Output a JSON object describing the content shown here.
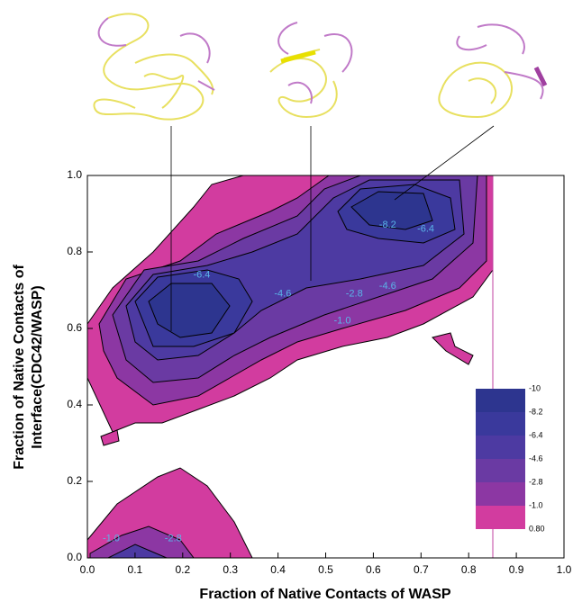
{
  "chart_data": {
    "type": "contour",
    "x_label": "Fraction of Native Contacts of WASP",
    "y_label": [
      "Fraction of Native Contacts of",
      "Interface(CDC42/WASP)"
    ],
    "xlim": [
      0,
      1
    ],
    "ylim": [
      0,
      1
    ],
    "xticks": [
      {
        "value": 0,
        "label": "0.0"
      },
      0.1,
      0.2,
      0.3,
      0.4,
      0.5,
      0.6,
      0.7,
      0.8,
      0.9,
      {
        "value": 1,
        "label": "1.0"
      }
    ],
    "yticks": [
      {
        "value": 0,
        "label": "0.0"
      },
      0.2,
      0.4,
      0.6,
      0.8,
      {
        "value": 1,
        "label": "1.0"
      }
    ],
    "contour_labels": [
      {
        "label": "-6.4",
        "x": 0.24,
        "y": 0.74
      },
      {
        "label": "-4.6",
        "x": 0.41,
        "y": 0.69
      },
      {
        "label": "-8.2",
        "x": 0.63,
        "y": 0.87
      },
      {
        "label": "-6.4",
        "x": 0.71,
        "y": 0.86
      },
      {
        "label": "-2.8",
        "x": 0.56,
        "y": 0.69
      },
      {
        "label": "-4.6",
        "x": 0.63,
        "y": 0.71
      },
      {
        "label": "-1.0",
        "x": 0.535,
        "y": 0.62
      },
      {
        "label": "-1.0",
        "x": 0.05,
        "y": 0.05
      },
      {
        "label": "-2.8",
        "x": 0.18,
        "y": 0.05
      }
    ],
    "colorbar": {
      "levels": [
        -10,
        -8.2,
        -6.4,
        -4.6,
        -2.8,
        {
          "value": -1,
          "label": "-1.0"
        },
        {
          "value": 0.8,
          "label": "0.80"
        }
      ],
      "colors": [
        "#2d358f",
        "#3a399c",
        "#4d3aa2",
        "#6a3aa3",
        "#8c37a3",
        "#d23c9f"
      ]
    }
  }
}
